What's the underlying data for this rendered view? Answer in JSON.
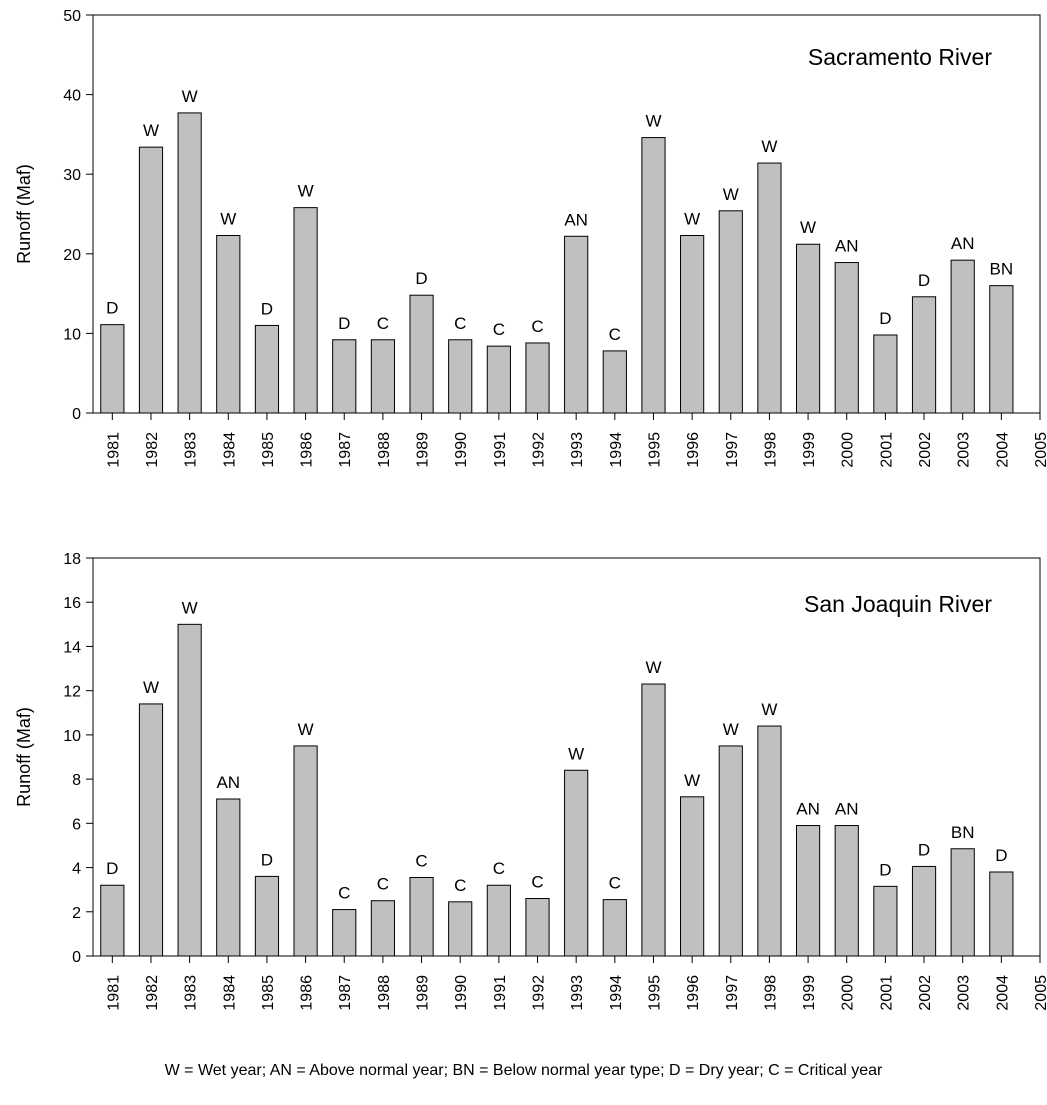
{
  "legend_text": "W = Wet year; AN = Above normal year; BN = Below normal year type; D = Dry year; C = Critical year",
  "colors": {
    "bar_fill": "#c0c0c0",
    "bar_stroke": "#000000",
    "axis": "#000000"
  },
  "chart_data": [
    {
      "type": "bar",
      "title": "Sacramento River",
      "ylabel": "Runoff (Maf)",
      "xlabel": "",
      "ylim": [
        0,
        50
      ],
      "yticks": [
        0,
        10,
        20,
        30,
        40,
        50
      ],
      "xticks": [
        "1981",
        "1982",
        "1983",
        "1984",
        "1985",
        "1986",
        "1987",
        "1988",
        "1989",
        "1990",
        "1991",
        "1992",
        "1993",
        "1994",
        "1995",
        "1996",
        "1997",
        "1998",
        "1999",
        "2000",
        "2001",
        "2002",
        "2003",
        "2004",
        "2005"
      ],
      "categories": [
        "1981",
        "1982",
        "1983",
        "1984",
        "1985",
        "1986",
        "1987",
        "1988",
        "1989",
        "1990",
        "1991",
        "1992",
        "1993",
        "1994",
        "1995",
        "1996",
        "1997",
        "1998",
        "1999",
        "2000",
        "2001",
        "2002",
        "2003",
        "2004"
      ],
      "values": [
        11.1,
        33.4,
        37.7,
        22.3,
        11.0,
        25.8,
        9.2,
        9.2,
        14.8,
        9.2,
        8.4,
        8.8,
        22.2,
        7.8,
        34.6,
        22.3,
        25.4,
        31.4,
        21.2,
        18.9,
        9.8,
        14.6,
        19.2,
        16.0
      ],
      "labels": [
        "D",
        "W",
        "W",
        "W",
        "D",
        "W",
        "D",
        "C",
        "D",
        "C",
        "C",
        "C",
        "AN",
        "C",
        "W",
        "W",
        "W",
        "W",
        "W",
        "AN",
        "D",
        "D",
        "AN",
        "BN"
      ],
      "grid": false
    },
    {
      "type": "bar",
      "title": "San Joaquin River",
      "ylabel": "Runoff (Maf)",
      "xlabel": "",
      "ylim": [
        0,
        18
      ],
      "yticks": [
        0,
        2,
        4,
        6,
        8,
        10,
        12,
        14,
        16,
        18
      ],
      "xticks": [
        "1981",
        "1982",
        "1983",
        "1984",
        "1985",
        "1986",
        "1987",
        "1988",
        "1989",
        "1990",
        "1991",
        "1992",
        "1993",
        "1994",
        "1995",
        "1996",
        "1997",
        "1998",
        "1999",
        "2000",
        "2001",
        "2002",
        "2003",
        "2004",
        "2005"
      ],
      "categories": [
        "1981",
        "1982",
        "1983",
        "1984",
        "1985",
        "1986",
        "1987",
        "1988",
        "1989",
        "1990",
        "1991",
        "1992",
        "1993",
        "1994",
        "1995",
        "1996",
        "1997",
        "1998",
        "1999",
        "2000",
        "2001",
        "2002",
        "2003",
        "2004"
      ],
      "values": [
        3.2,
        11.4,
        15.0,
        7.1,
        3.6,
        9.5,
        2.1,
        2.5,
        3.55,
        2.45,
        3.2,
        2.6,
        8.4,
        2.55,
        12.3,
        7.2,
        9.5,
        10.4,
        5.9,
        5.9,
        3.15,
        4.05,
        4.85,
        3.8
      ],
      "labels": [
        "D",
        "W",
        "W",
        "AN",
        "D",
        "W",
        "C",
        "C",
        "C",
        "C",
        "C",
        "C",
        "W",
        "C",
        "W",
        "W",
        "W",
        "W",
        "AN",
        "AN",
        "D",
        "D",
        "BN",
        "D"
      ],
      "grid": false
    }
  ]
}
